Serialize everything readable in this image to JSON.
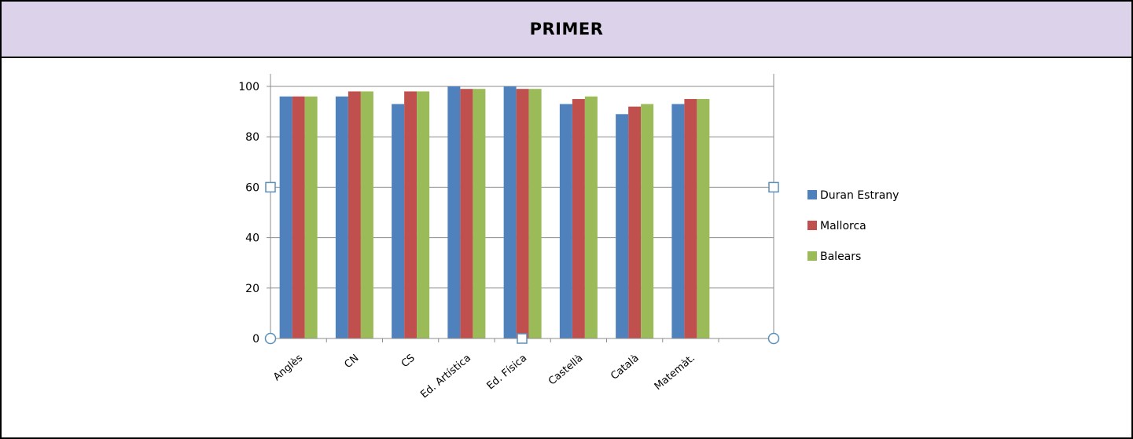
{
  "header": {
    "title": "PRIMER"
  },
  "chart_data": {
    "type": "bar",
    "categories": [
      "Anglès",
      "CN",
      "CS",
      "Ed. Artística",
      "Ed. Física",
      "Castellà",
      "Català",
      "Matemàt."
    ],
    "series": [
      {
        "name": "Duran Estrany",
        "color": "#4f81bd",
        "values": [
          96,
          96,
          93,
          100,
          100,
          93,
          89,
          93
        ]
      },
      {
        "name": "Mallorca",
        "color": "#c0504d",
        "values": [
          96,
          98,
          98,
          99,
          99,
          95,
          92,
          95
        ]
      },
      {
        "name": "Balears",
        "color": "#9bbb59",
        "values": [
          96,
          98,
          98,
          99,
          99,
          96,
          93,
          95
        ]
      }
    ],
    "ylim": [
      0,
      100
    ],
    "yticks": [
      0,
      20,
      40,
      60,
      80,
      100
    ],
    "grid": true,
    "legend": "right",
    "title": "",
    "xlabel": "",
    "ylabel": ""
  }
}
